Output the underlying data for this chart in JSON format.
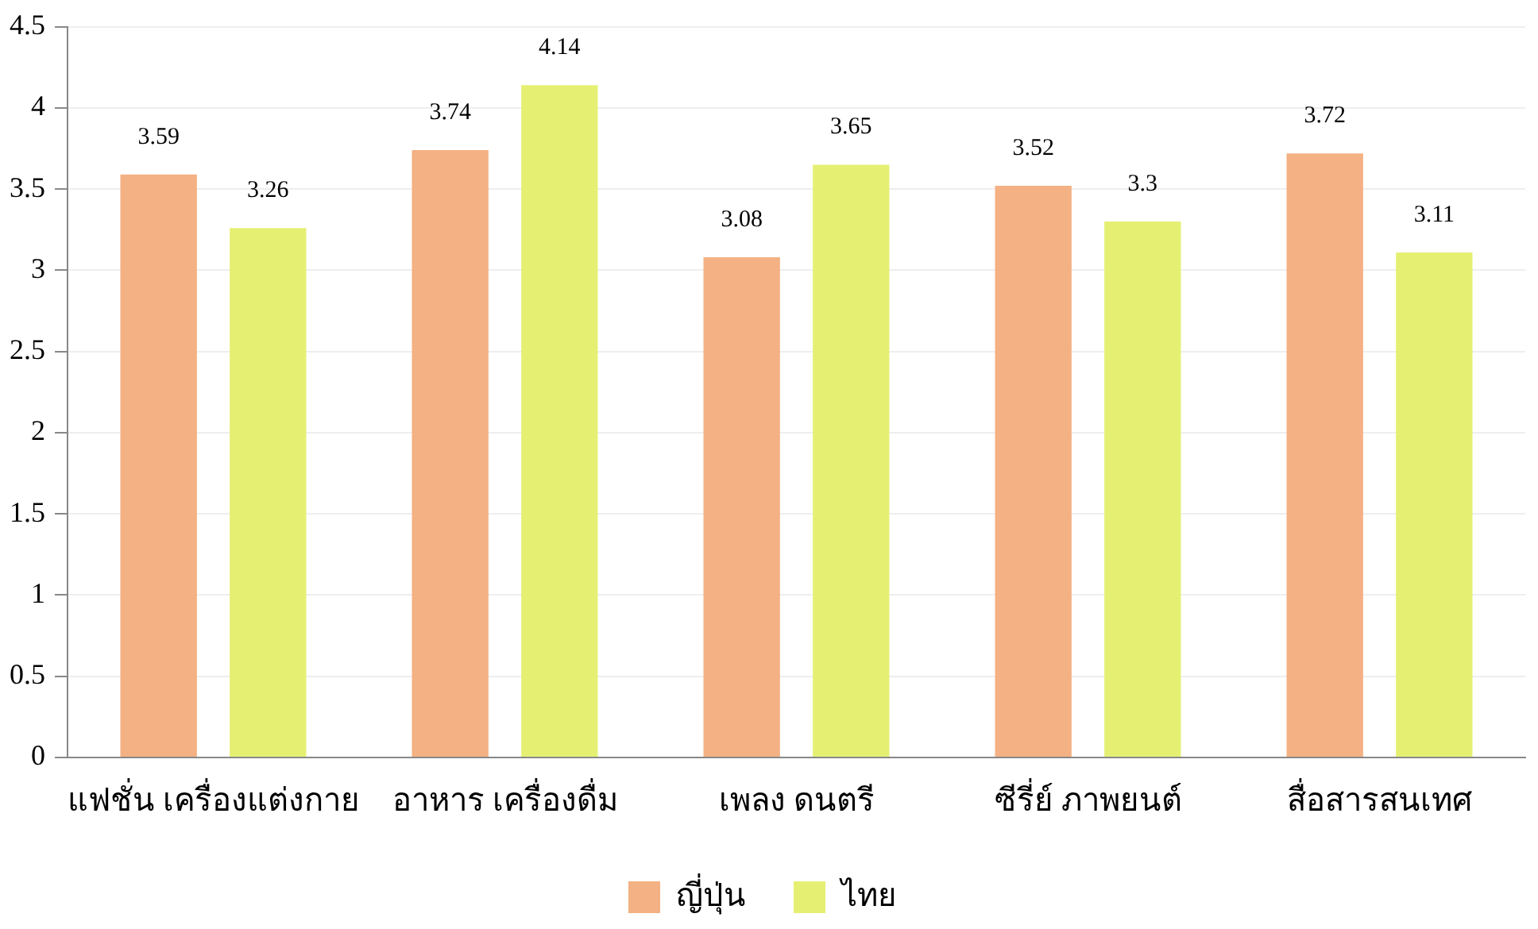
{
  "chart_data": {
    "type": "bar",
    "categories": [
      "แฟชั่น เครื่องแต่งกาย",
      "อาหาร เครื่องดื่ม",
      "เพลง ดนตรี",
      "ซีรี่ย์ ภาพยนต์",
      "สื่อสารสนเทศ"
    ],
    "series": [
      {
        "name": "ญี่ปุ่น",
        "color": "#f4b183",
        "values": [
          3.59,
          3.74,
          3.08,
          3.52,
          3.72
        ]
      },
      {
        "name": "ไทย",
        "color": "#e5f073",
        "values": [
          3.26,
          4.14,
          3.65,
          3.3,
          3.11
        ]
      }
    ],
    "ylim": [
      0,
      4.5
    ],
    "yticks": [
      0,
      0.5,
      1,
      1.5,
      2,
      2.5,
      3,
      3.5,
      4,
      4.5
    ],
    "grid": "y",
    "legend": "bottom",
    "data_labels": true
  }
}
